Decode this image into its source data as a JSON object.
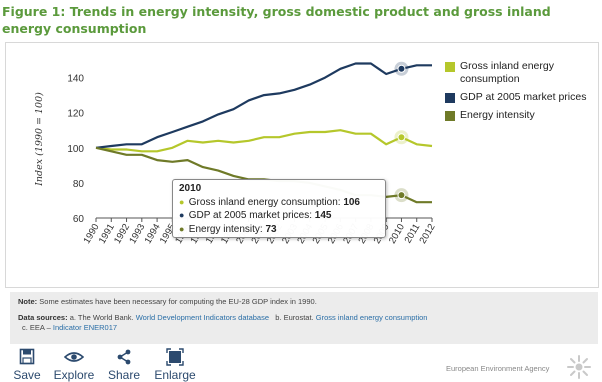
{
  "figure": {
    "title": "Figure 1: Trends in energy intensity, gross domestic product and gross inland energy consumption"
  },
  "chart_data": {
    "type": "line",
    "title": "",
    "ylabel": "Index (1990 = 100)",
    "xlabel": "",
    "x": [
      "1990",
      "1991",
      "1992",
      "1993",
      "1994",
      "1995",
      "1996",
      "1997",
      "1998",
      "1999",
      "2000",
      "2001",
      "2002",
      "2003",
      "2004",
      "2005",
      "2006",
      "2007",
      "2008",
      "2009",
      "2010",
      "2011",
      "2012"
    ],
    "ylim": [
      60,
      150
    ],
    "yticks": [
      60,
      80,
      100,
      120,
      140
    ],
    "grid": false,
    "legend_position": "right",
    "series": [
      {
        "name": "Gross inland energy consumption",
        "color": "#b5c72b",
        "values": [
          100,
          99,
          99,
          98,
          98,
          100,
          104,
          103,
          104,
          103,
          104,
          106,
          106,
          108,
          109,
          109,
          110,
          108,
          108,
          102,
          106,
          102,
          101
        ]
      },
      {
        "name": "GDP at 2005 market prices",
        "color": "#1e3a5f",
        "values": [
          100,
          101,
          102,
          102,
          106,
          109,
          112,
          115,
          119,
          122,
          127,
          130,
          131,
          133,
          136,
          140,
          145,
          148,
          148,
          142,
          145,
          147,
          147
        ]
      },
      {
        "name": "Energy intensity",
        "color": "#6f7a28",
        "values": [
          100,
          98,
          96,
          96,
          93,
          92,
          93,
          89,
          87,
          84,
          82,
          82,
          81,
          81,
          80,
          78,
          76,
          73,
          73,
          72,
          73,
          69,
          69
        ]
      }
    ],
    "highlight_x": "2010"
  },
  "tooltip": {
    "year": "2010",
    "rows": [
      {
        "label": "Gross inland energy consumption:",
        "value": "106",
        "color": "#b5c72b"
      },
      {
        "label": "GDP at 2005 market prices:",
        "value": "145",
        "color": "#1e3a5f"
      },
      {
        "label": "Energy intensity:",
        "value": "73",
        "color": "#6f7a28"
      }
    ]
  },
  "notes": {
    "note_label": "Note:",
    "note_text": "Some estimates have been necessary for computing the EU-28 GDP index in 1990.",
    "sources_label": "Data sources:",
    "source_a_prefix": "a. The World Bank.",
    "source_a_link": "World Development Indicators database",
    "source_b_prefix": "b. Eurostat.",
    "source_b_link": "Gross inland energy consumption",
    "source_c_prefix": "c. EEA –",
    "source_c_link": "Indicator ENER017"
  },
  "toolbar": {
    "save": "Save",
    "explore": "Explore",
    "share": "Share",
    "enlarge": "Enlarge"
  },
  "footer": {
    "agency": "European Environment Agency"
  }
}
